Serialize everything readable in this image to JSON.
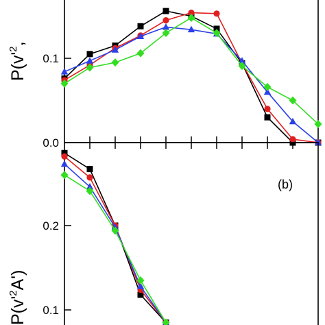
{
  "chart_data": [
    {
      "type": "line",
      "panel_label": "",
      "ylabel": "P(v'²A'')",
      "ylabel_parts": {
        "main": "P(v'",
        "sup": "2",
        "rest": ","
      },
      "xlabel": "",
      "x": [
        0,
        1,
        2,
        3,
        4,
        5,
        6,
        7,
        8,
        9,
        10
      ],
      "ylim": [
        0.0,
        0.196
      ],
      "yticks": [
        "0.0",
        "0.1"
      ],
      "ytick_values": [
        0.0,
        0.1
      ],
      "grid": false,
      "series": [
        {
          "color": "#000000",
          "marker": "square",
          "values": [
            0.076,
            0.105,
            0.115,
            0.138,
            0.156,
            0.15,
            0.135,
            0.094,
            0.03,
            0.0,
            0.0
          ]
        },
        {
          "color": "#e02020",
          "marker": "circle",
          "values": [
            0.074,
            0.092,
            0.112,
            0.127,
            0.145,
            0.154,
            0.153,
            0.094,
            0.04,
            0.004,
            0.0
          ]
        },
        {
          "color": "#2a40e8",
          "marker": "triangle",
          "values": [
            0.084,
            0.097,
            0.11,
            0.126,
            0.137,
            0.134,
            0.129,
            0.097,
            0.06,
            0.025,
            0.0
          ]
        },
        {
          "color": "#33dd22",
          "marker": "diamond",
          "values": [
            0.07,
            0.089,
            0.095,
            0.106,
            0.13,
            0.148,
            0.13,
            0.091,
            0.066,
            0.05,
            0.022
          ]
        }
      ]
    },
    {
      "type": "line",
      "panel_label": "(b)",
      "ylabel": "P(v'²A')",
      "ylabel_parts": {
        "main": "P(v'",
        "sup": "2",
        "rest": "A')"
      },
      "xlabel": "",
      "x": [
        0,
        1,
        2,
        3,
        4
      ],
      "ylim": [
        0.074,
        0.29
      ],
      "yticks": [
        "0.1",
        "0.2"
      ],
      "ytick_values": [
        0.1,
        0.2
      ],
      "grid": false,
      "series": [
        {
          "color": "#000000",
          "marker": "square",
          "values": [
            0.286,
            0.267,
            0.2,
            0.118,
            0.085
          ]
        },
        {
          "color": "#e02020",
          "marker": "circle",
          "values": [
            0.282,
            0.257,
            0.2,
            0.124,
            0.085
          ]
        },
        {
          "color": "#2a40e8",
          "marker": "triangle",
          "values": [
            0.273,
            0.246,
            0.198,
            0.128,
            0.085
          ]
        },
        {
          "color": "#33dd22",
          "marker": "diamond",
          "values": [
            0.26,
            0.241,
            0.194,
            0.135,
            0.085
          ]
        }
      ]
    }
  ]
}
